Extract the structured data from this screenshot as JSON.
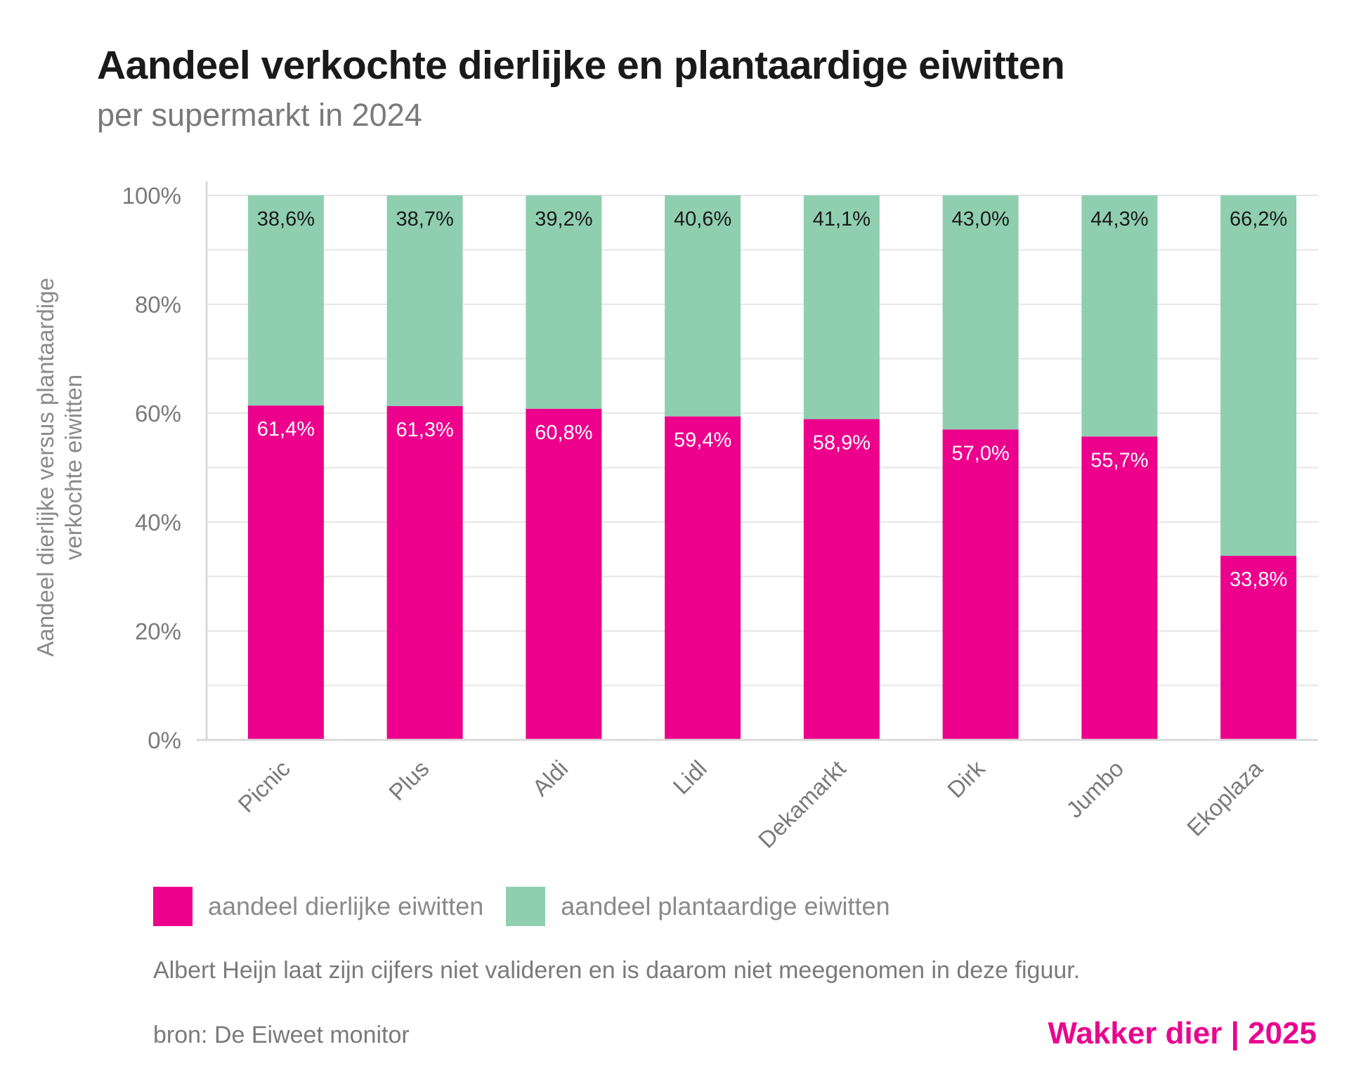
{
  "header": {
    "title": "Aandeel verkochte dierlijke en plantaardige eiwitten",
    "subtitle": "per supermarkt in 2024"
  },
  "colors": {
    "animal": "#ec008c",
    "plant": "#8fcfb0",
    "brand": "#e8068f"
  },
  "legend": {
    "animal_label": "aandeel dierlijke eiwitten",
    "plant_label": "aandeel plantaardige eiwitten"
  },
  "footer": {
    "note": "Albert Heijn laat zijn cijfers niet valideren en is daarom niet meegenomen in deze figuur.",
    "source": "bron: De Eiweet monitor",
    "brand": "Wakker dier | 2025"
  },
  "chart_data": {
    "type": "bar",
    "stacked": true,
    "title": "Aandeel verkochte dierlijke en plantaardige eiwitten",
    "subtitle": "per supermarkt in 2024",
    "xlabel": "",
    "ylabel": "Aandeel dierlijke versus plantaardige verkochte eiwitten",
    "ylabel_lines": [
      "Aandeel dierlijke versus plantaardige",
      "verkochte eiwitten"
    ],
    "ylim": [
      0,
      100
    ],
    "yticks": [
      0,
      20,
      40,
      60,
      80,
      100
    ],
    "ytick_labels": [
      "0%",
      "20%",
      "40%",
      "60%",
      "80%",
      "100%"
    ],
    "grid": true,
    "categories": [
      "Picnic",
      "Plus",
      "Aldi",
      "Lidl",
      "Dekamarkt",
      "Dirk",
      "Jumbo",
      "Ekoplaza"
    ],
    "series": [
      {
        "name": "aandeel dierlijke eiwitten",
        "values": [
          61.4,
          61.3,
          60.8,
          59.4,
          58.9,
          57.0,
          55.7,
          33.8
        ],
        "labels": [
          "61,4%",
          "61,3%",
          "60,8%",
          "59,4%",
          "58,9%",
          "57,0%",
          "55,7%",
          "33,8%"
        ]
      },
      {
        "name": "aandeel plantaardige eiwitten",
        "values": [
          38.6,
          38.7,
          39.2,
          40.6,
          41.1,
          43.0,
          44.3,
          66.2
        ],
        "labels": [
          "38,6%",
          "38,7%",
          "39,2%",
          "40,6%",
          "41,1%",
          "43,0%",
          "44,3%",
          "66,2%"
        ]
      }
    ]
  }
}
